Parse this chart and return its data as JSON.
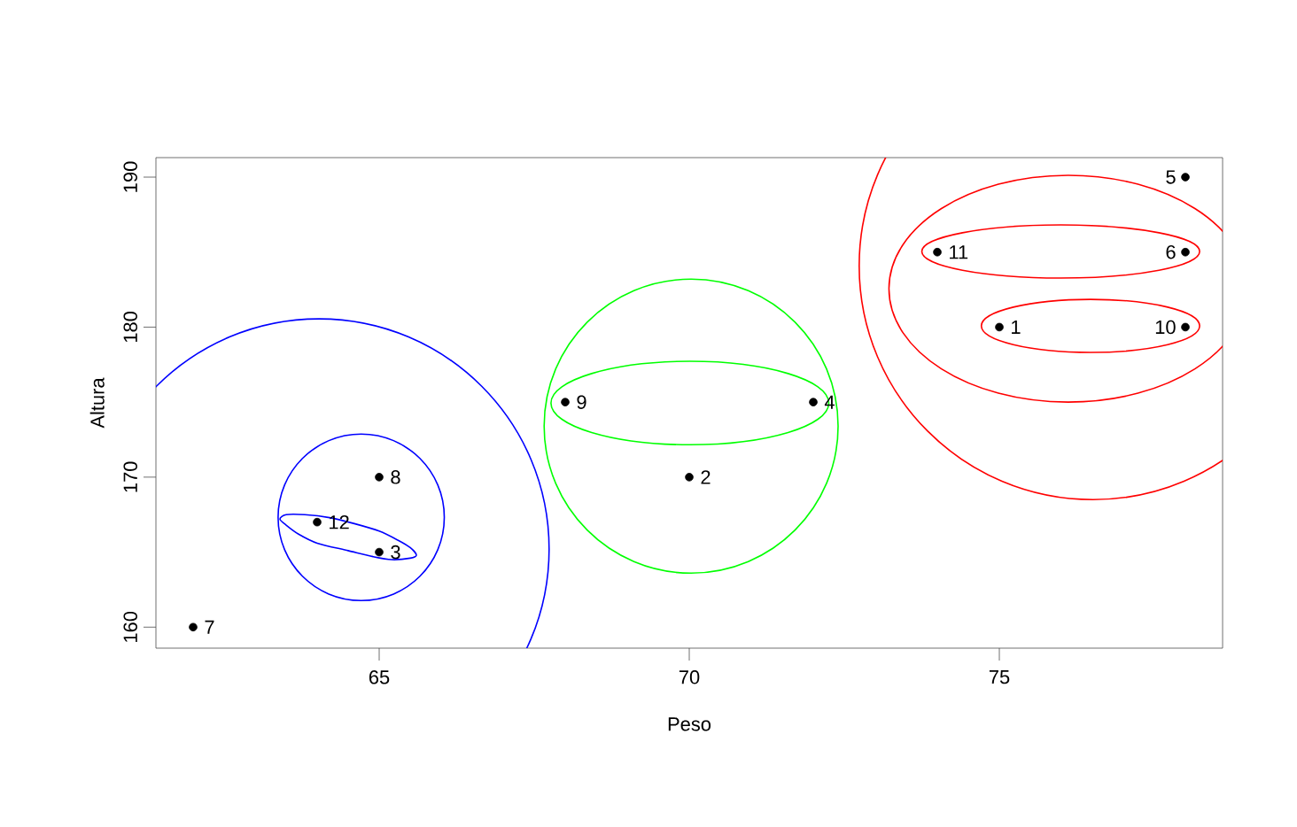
{
  "chart_data": {
    "type": "scatter",
    "xlabel": "Peso",
    "ylabel": "Altura",
    "xlim": [
      61.4,
      78.6
    ],
    "ylim": [
      158.6,
      191.3
    ],
    "xticks": [
      65,
      70,
      75
    ],
    "yticks": [
      160,
      170,
      180,
      190
    ],
    "marker": "circle",
    "series": [
      {
        "color": "#000000",
        "x": [
          75,
          70,
          65,
          72,
          78,
          78,
          62,
          65,
          68,
          78,
          74,
          64
        ],
        "values": [
          180,
          170,
          165,
          175,
          190,
          185,
          160,
          170,
          175,
          180,
          185,
          167
        ]
      }
    ],
    "annotations": [
      {
        "text": "1",
        "x": 75,
        "y": 180
      },
      {
        "text": "2",
        "x": 70,
        "y": 170
      },
      {
        "text": "3",
        "x": 65,
        "y": 165
      },
      {
        "text": "4",
        "x": 72,
        "y": 175
      },
      {
        "text": "5",
        "x": 78,
        "y": 190
      },
      {
        "text": "6",
        "x": 78,
        "y": 185
      },
      {
        "text": "7",
        "x": 62,
        "y": 160
      },
      {
        "text": "8",
        "x": 65,
        "y": 170
      },
      {
        "text": "9",
        "x": 68,
        "y": 175
      },
      {
        "text": "10",
        "x": 78,
        "y": 180
      },
      {
        "text": "11",
        "x": 74,
        "y": 185
      },
      {
        "text": "12",
        "x": 64,
        "y": 167
      }
    ]
  }
}
